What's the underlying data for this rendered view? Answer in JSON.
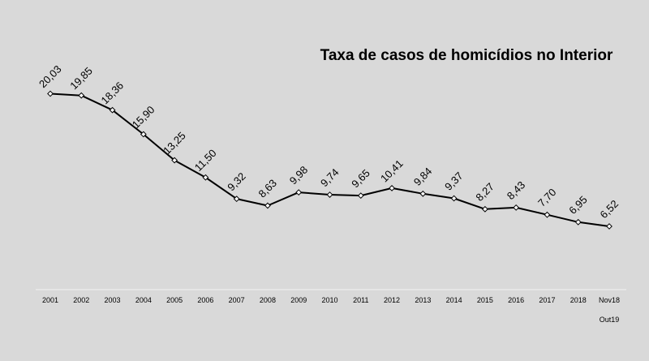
{
  "chart_data": {
    "type": "line",
    "title": "Taxa de casos de homicídios no Interior",
    "xlabel": "",
    "ylabel": "",
    "categories": [
      "2001",
      "2002",
      "2003",
      "2004",
      "2005",
      "2006",
      "2007",
      "2008",
      "2009",
      "2010",
      "2011",
      "2012",
      "2013",
      "2014",
      "2015",
      "2016",
      "2017",
      "2018",
      "Nov18 Out19"
    ],
    "category_lines": [
      [
        "2001"
      ],
      [
        "2002"
      ],
      [
        "2003"
      ],
      [
        "2004"
      ],
      [
        "2005"
      ],
      [
        "2006"
      ],
      [
        "2007"
      ],
      [
        "2008"
      ],
      [
        "2009"
      ],
      [
        "2010"
      ],
      [
        "2011"
      ],
      [
        "2012"
      ],
      [
        "2013"
      ],
      [
        "2014"
      ],
      [
        "2015"
      ],
      [
        "2016"
      ],
      [
        "2017"
      ],
      [
        "2018"
      ],
      [
        "Nov18",
        "Out19"
      ]
    ],
    "series": [
      {
        "values": [
          20.03,
          19.85,
          18.36,
          15.9,
          13.25,
          11.5,
          9.32,
          8.63,
          9.98,
          9.74,
          9.65,
          10.41,
          9.84,
          9.37,
          8.27,
          8.43,
          7.7,
          6.95,
          6.52
        ],
        "labels": [
          "20,03",
          "19,85",
          "18,36",
          "15,90",
          "13,25",
          "11,50",
          "9,32",
          "8,63",
          "9,98",
          "9,74",
          "9,65",
          "10,41",
          "9,84",
          "9,37",
          "8,27",
          "8,43",
          "7,70",
          "6,95",
          "6,52"
        ]
      }
    ],
    "ylim": [
      0,
      26
    ],
    "grid": false,
    "colors": {
      "line": "#000000",
      "marker_fill": "#ffffff",
      "background": "#d9d9d9",
      "axis": "#f2f2f2"
    }
  }
}
